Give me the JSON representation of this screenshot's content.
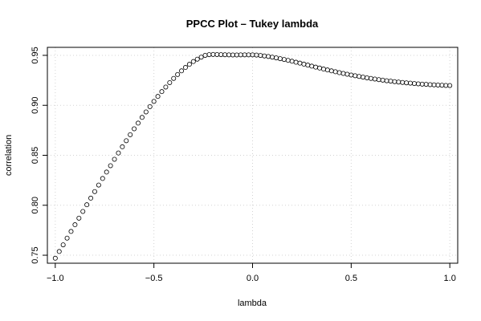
{
  "chart_data": {
    "type": "scatter",
    "title": "PPCC Plot – Tukey lambda",
    "xlabel": "lambda",
    "ylabel": "correlation",
    "xlim": [
      -1.04,
      1.04
    ],
    "ylim": [
      0.742,
      0.958
    ],
    "x_ticks": [
      -1.0,
      -0.5,
      0.0,
      0.5,
      1.0
    ],
    "x_tick_labels": [
      "−1.0",
      "−0.5",
      "0.0",
      "0.5",
      "1.0"
    ],
    "y_ticks": [
      0.75,
      0.8,
      0.85,
      0.9,
      0.95
    ],
    "y_tick_labels": [
      "0.75",
      "0.80",
      "0.85",
      "0.90",
      "0.95"
    ],
    "grid": true,
    "marker": "open-circle",
    "series": [
      {
        "x": [
          -1.0,
          -0.98,
          -0.96,
          -0.94,
          -0.92,
          -0.9,
          -0.88,
          -0.86,
          -0.84,
          -0.82,
          -0.8,
          -0.78,
          -0.76,
          -0.74,
          -0.72,
          -0.7,
          -0.68,
          -0.66,
          -0.64,
          -0.62,
          -0.6,
          -0.58,
          -0.56,
          -0.54,
          -0.52,
          -0.5,
          -0.48,
          -0.46,
          -0.44,
          -0.42,
          -0.4,
          -0.38,
          -0.36,
          -0.34,
          -0.32,
          -0.3,
          -0.28,
          -0.26,
          -0.24,
          -0.22,
          -0.2,
          -0.18,
          -0.16,
          -0.14,
          -0.12,
          -0.1,
          -0.08,
          -0.06,
          -0.04,
          -0.02,
          0.0,
          0.02,
          0.04,
          0.06,
          0.08,
          0.1,
          0.12,
          0.14,
          0.16,
          0.18,
          0.2,
          0.22,
          0.24,
          0.26,
          0.28,
          0.3,
          0.32,
          0.34,
          0.36,
          0.38,
          0.4,
          0.42,
          0.44,
          0.46,
          0.48,
          0.5,
          0.52,
          0.54,
          0.56,
          0.58,
          0.6,
          0.62,
          0.64,
          0.66,
          0.68,
          0.7,
          0.72,
          0.74,
          0.76,
          0.78,
          0.8,
          0.82,
          0.84,
          0.86,
          0.88,
          0.9,
          0.92,
          0.94,
          0.96,
          0.98,
          1.0
        ],
        "y": [
          0.747,
          0.7537,
          0.7604,
          0.7671,
          0.7738,
          0.7805,
          0.7871,
          0.7938,
          0.8005,
          0.8071,
          0.8137,
          0.8202,
          0.8268,
          0.8332,
          0.8396,
          0.846,
          0.8523,
          0.8585,
          0.8646,
          0.8706,
          0.8765,
          0.8822,
          0.8879,
          0.8934,
          0.8987,
          0.9039,
          0.9089,
          0.9137,
          0.9183,
          0.9227,
          0.9269,
          0.9308,
          0.9345,
          0.9379,
          0.941,
          0.9438,
          0.9462,
          0.9482,
          0.95,
          0.9507,
          0.9509,
          0.9508,
          0.9507,
          0.9506,
          0.9505,
          0.9504,
          0.9504,
          0.9505,
          0.9505,
          0.9505,
          0.9505,
          0.9503,
          0.9499,
          0.9494,
          0.9489,
          0.9482,
          0.9475,
          0.9467,
          0.9459,
          0.945,
          0.9441,
          0.9431,
          0.9422,
          0.9412,
          0.9402,
          0.9392,
          0.9382,
          0.9373,
          0.9363,
          0.9354,
          0.9345,
          0.9336,
          0.9327,
          0.9319,
          0.9311,
          0.9303,
          0.9296,
          0.9289,
          0.9282,
          0.9275,
          0.9269,
          0.9263,
          0.9257,
          0.9252,
          0.9246,
          0.9242,
          0.9237,
          0.9233,
          0.9229,
          0.9225,
          0.9222,
          0.9218,
          0.9215,
          0.9212,
          0.921,
          0.9207,
          0.9205,
          0.9203,
          0.9201,
          0.9199,
          0.9198
        ]
      }
    ]
  }
}
